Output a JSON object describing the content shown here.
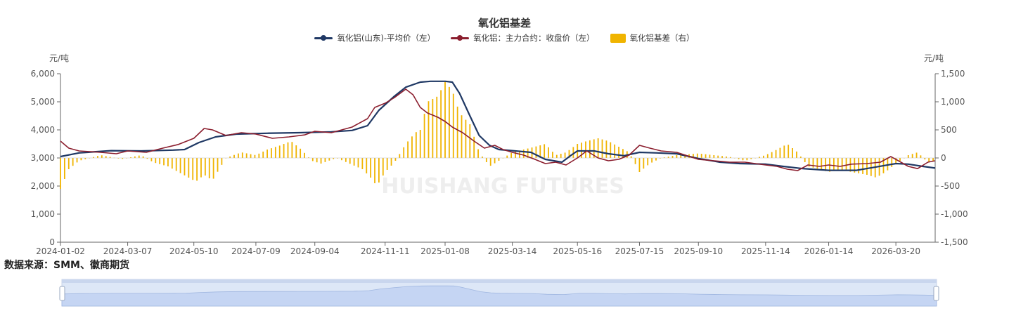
{
  "chart_data": {
    "type": "line",
    "title": "氧化铝基差",
    "left_axis_unit": "元/吨",
    "right_axis_unit": "元/吨",
    "left_ylim": [
      0,
      6000
    ],
    "left_yticks": [
      "0",
      "1,000",
      "2,000",
      "3,000",
      "4,000",
      "5,000",
      "6,000"
    ],
    "right_ylim": [
      -1500,
      1500
    ],
    "right_yticks": [
      "-1,500",
      "-1,000",
      "-500",
      "0",
      "500",
      "1,000",
      "1,500"
    ],
    "x_tick_labels": [
      "2024-01-02",
      "2024-03-07",
      "2024-05-10",
      "2024-07-09",
      "2024-09-04",
      "2024-11-11",
      "2025-01-08",
      "2025-03-14",
      "2025-05-16",
      "2025-07-15",
      "2025-09-10",
      "2025-11-14",
      "2026-01-14",
      "2026-03-20"
    ],
    "x_range": [
      "2024-01-02",
      "2026-04-27"
    ],
    "legend_position": "top-center",
    "grid": false,
    "source_note": "数据来源：SMM、徽商期货",
    "watermark": "HUISHANG FUTURES",
    "series": [
      {
        "name": "氧化铝(山东)-平均价（左）",
        "type": "line",
        "axis": "left",
        "color": "#1f3864",
        "points": [
          [
            "2024-01-02",
            3050
          ],
          [
            "2024-01-20",
            3180
          ],
          [
            "2024-02-20",
            3260
          ],
          [
            "2024-03-20",
            3250
          ],
          [
            "2024-04-20",
            3280
          ],
          [
            "2024-05-01",
            3300
          ],
          [
            "2024-05-15",
            3550
          ],
          [
            "2024-05-31",
            3750
          ],
          [
            "2024-06-20",
            3850
          ],
          [
            "2024-07-20",
            3880
          ],
          [
            "2024-08-20",
            3900
          ],
          [
            "2024-09-20",
            3930
          ],
          [
            "2024-10-10",
            3980
          ],
          [
            "2024-10-25",
            4150
          ],
          [
            "2024-11-05",
            4700
          ],
          [
            "2024-11-20",
            5200
          ],
          [
            "2024-12-01",
            5520
          ],
          [
            "2024-12-15",
            5700
          ],
          [
            "2024-12-25",
            5730
          ],
          [
            "2025-01-08",
            5730
          ],
          [
            "2025-01-15",
            5700
          ],
          [
            "2025-01-22",
            5300
          ],
          [
            "2025-02-01",
            4500
          ],
          [
            "2025-02-10",
            3800
          ],
          [
            "2025-02-20",
            3450
          ],
          [
            "2025-03-01",
            3300
          ],
          [
            "2025-03-14",
            3260
          ],
          [
            "2025-04-01",
            3200
          ],
          [
            "2025-04-15",
            2950
          ],
          [
            "2025-05-01",
            2850
          ],
          [
            "2025-05-10",
            3100
          ],
          [
            "2025-05-16",
            3250
          ],
          [
            "2025-06-01",
            3250
          ],
          [
            "2025-06-15",
            3150
          ],
          [
            "2025-06-30",
            3080
          ],
          [
            "2025-07-15",
            3200
          ],
          [
            "2025-08-01",
            3180
          ],
          [
            "2025-08-20",
            3150
          ],
          [
            "2025-09-10",
            2980
          ],
          [
            "2025-10-01",
            2850
          ],
          [
            "2025-10-20",
            2800
          ],
          [
            "2025-11-14",
            2780
          ],
          [
            "2025-12-01",
            2700
          ],
          [
            "2025-12-20",
            2620
          ],
          [
            "2026-01-14",
            2560
          ],
          [
            "2026-02-10",
            2560
          ],
          [
            "2026-03-01",
            2680
          ],
          [
            "2026-03-20",
            2800
          ],
          [
            "2026-04-01",
            2780
          ],
          [
            "2026-04-15",
            2700
          ],
          [
            "2026-04-27",
            2640
          ]
        ]
      },
      {
        "name": "氧化铝：主力合约：收盘价（左）",
        "type": "line",
        "axis": "left",
        "color": "#8b1e2e",
        "points": [
          [
            "2024-01-02",
            3600
          ],
          [
            "2024-01-10",
            3350
          ],
          [
            "2024-01-20",
            3250
          ],
          [
            "2024-02-10",
            3200
          ],
          [
            "2024-02-25",
            3150
          ],
          [
            "2024-03-07",
            3250
          ],
          [
            "2024-03-25",
            3200
          ],
          [
            "2024-04-10",
            3350
          ],
          [
            "2024-04-25",
            3480
          ],
          [
            "2024-05-10",
            3700
          ],
          [
            "2024-05-20",
            4050
          ],
          [
            "2024-05-28",
            4000
          ],
          [
            "2024-06-10",
            3800
          ],
          [
            "2024-06-25",
            3900
          ],
          [
            "2024-07-09",
            3850
          ],
          [
            "2024-07-25",
            3700
          ],
          [
            "2024-08-10",
            3750
          ],
          [
            "2024-08-25",
            3820
          ],
          [
            "2024-09-04",
            3950
          ],
          [
            "2024-09-20",
            3900
          ],
          [
            "2024-10-10",
            4100
          ],
          [
            "2024-10-25",
            4400
          ],
          [
            "2024-11-01",
            4800
          ],
          [
            "2024-11-11",
            4950
          ],
          [
            "2024-11-20",
            5150
          ],
          [
            "2024-12-01",
            5450
          ],
          [
            "2024-12-08",
            5250
          ],
          [
            "2024-12-15",
            4800
          ],
          [
            "2024-12-22",
            4600
          ],
          [
            "2025-01-01",
            4450
          ],
          [
            "2025-01-08",
            4300
          ],
          [
            "2025-01-15",
            4100
          ],
          [
            "2025-01-25",
            3900
          ],
          [
            "2025-02-05",
            3600
          ],
          [
            "2025-02-15",
            3350
          ],
          [
            "2025-02-25",
            3450
          ],
          [
            "2025-03-05",
            3300
          ],
          [
            "2025-03-14",
            3200
          ],
          [
            "2025-03-25",
            3100
          ],
          [
            "2025-04-05",
            2950
          ],
          [
            "2025-04-15",
            2800
          ],
          [
            "2025-04-25",
            2850
          ],
          [
            "2025-05-05",
            2750
          ],
          [
            "2025-05-16",
            3000
          ],
          [
            "2025-05-25",
            3250
          ],
          [
            "2025-06-05",
            3000
          ],
          [
            "2025-06-15",
            2900
          ],
          [
            "2025-06-25",
            2950
          ],
          [
            "2025-07-05",
            3100
          ],
          [
            "2025-07-15",
            3450
          ],
          [
            "2025-07-25",
            3350
          ],
          [
            "2025-08-05",
            3250
          ],
          [
            "2025-08-20",
            3200
          ],
          [
            "2025-09-10",
            2950
          ],
          [
            "2025-09-25",
            2900
          ],
          [
            "2025-10-10",
            2850
          ],
          [
            "2025-10-25",
            2850
          ],
          [
            "2025-11-14",
            2750
          ],
          [
            "2025-11-25",
            2700
          ],
          [
            "2025-12-05",
            2600
          ],
          [
            "2025-12-15",
            2550
          ],
          [
            "2025-12-25",
            2750
          ],
          [
            "2026-01-05",
            2700
          ],
          [
            "2026-01-14",
            2750
          ],
          [
            "2026-01-25",
            2700
          ],
          [
            "2026-02-05",
            2780
          ],
          [
            "2026-02-20",
            2800
          ],
          [
            "2026-03-05",
            2850
          ],
          [
            "2026-03-15",
            3050
          ],
          [
            "2026-03-20",
            2950
          ],
          [
            "2026-04-01",
            2700
          ],
          [
            "2026-04-10",
            2620
          ],
          [
            "2026-04-20",
            2850
          ],
          [
            "2026-04-27",
            2900
          ]
        ]
      },
      {
        "name": "氧化铝基差（右）",
        "type": "bar",
        "axis": "right",
        "color": "#f0b400",
        "points": [
          [
            "2024-01-02",
            -550
          ],
          [
            "2024-01-10",
            -200
          ],
          [
            "2024-01-20",
            -50
          ],
          [
            "2024-02-10",
            50
          ],
          [
            "2024-03-01",
            -20
          ],
          [
            "2024-03-20",
            50
          ],
          [
            "2024-04-01",
            -80
          ],
          [
            "2024-04-15",
            -150
          ],
          [
            "2024-04-25",
            -250
          ],
          [
            "2024-05-05",
            -350
          ],
          [
            "2024-05-12",
            -420
          ],
          [
            "2024-05-20",
            -300
          ],
          [
            "2024-05-28",
            -400
          ],
          [
            "2024-06-10",
            0
          ],
          [
            "2024-06-25",
            100
          ],
          [
            "2024-07-09",
            50
          ],
          [
            "2024-07-20",
            150
          ],
          [
            "2024-08-01",
            220
          ],
          [
            "2024-08-12",
            300
          ],
          [
            "2024-08-22",
            150
          ],
          [
            "2024-09-01",
            -50
          ],
          [
            "2024-09-10",
            -100
          ],
          [
            "2024-09-25",
            0
          ],
          [
            "2024-10-10",
            -120
          ],
          [
            "2024-10-20",
            -200
          ],
          [
            "2024-10-28",
            -350
          ],
          [
            "2024-11-03",
            -500
          ],
          [
            "2024-11-11",
            -250
          ],
          [
            "2024-11-20",
            -80
          ],
          [
            "2024-12-01",
            250
          ],
          [
            "2024-12-10",
            450
          ],
          [
            "2024-12-15",
            500
          ],
          [
            "2024-12-22",
            1000
          ],
          [
            "2025-01-01",
            1100
          ],
          [
            "2025-01-08",
            1350
          ],
          [
            "2025-01-15",
            1200
          ],
          [
            "2025-01-22",
            800
          ],
          [
            "2025-02-01",
            600
          ],
          [
            "2025-02-10",
            100
          ],
          [
            "2025-02-20",
            -150
          ],
          [
            "2025-03-01",
            -50
          ],
          [
            "2025-03-14",
            100
          ],
          [
            "2025-03-25",
            150
          ],
          [
            "2025-04-05",
            200
          ],
          [
            "2025-04-15",
            250
          ],
          [
            "2025-04-25",
            50
          ],
          [
            "2025-05-05",
            100
          ],
          [
            "2025-05-16",
            250
          ],
          [
            "2025-05-25",
            300
          ],
          [
            "2025-06-05",
            350
          ],
          [
            "2025-06-15",
            300
          ],
          [
            "2025-06-25",
            200
          ],
          [
            "2025-07-05",
            100
          ],
          [
            "2025-07-15",
            -250
          ],
          [
            "2025-07-25",
            -100
          ],
          [
            "2025-08-05",
            0
          ],
          [
            "2025-08-20",
            50
          ],
          [
            "2025-09-10",
            80
          ],
          [
            "2025-09-25",
            50
          ],
          [
            "2025-10-10",
            20
          ],
          [
            "2025-10-25",
            -50
          ],
          [
            "2025-11-14",
            50
          ],
          [
            "2025-11-25",
            150
          ],
          [
            "2025-12-05",
            250
          ],
          [
            "2025-12-15",
            100
          ],
          [
            "2025-12-25",
            -150
          ],
          [
            "2026-01-05",
            -200
          ],
          [
            "2026-01-14",
            -250
          ],
          [
            "2026-01-25",
            -200
          ],
          [
            "2026-02-05",
            -250
          ],
          [
            "2026-02-20",
            -300
          ],
          [
            "2026-03-01",
            -350
          ],
          [
            "2026-03-10",
            -250
          ],
          [
            "2026-03-20",
            -100
          ],
          [
            "2026-04-01",
            50
          ],
          [
            "2026-04-10",
            100
          ],
          [
            "2026-04-20",
            -80
          ],
          [
            "2026-04-27",
            -40
          ]
        ]
      }
    ]
  }
}
